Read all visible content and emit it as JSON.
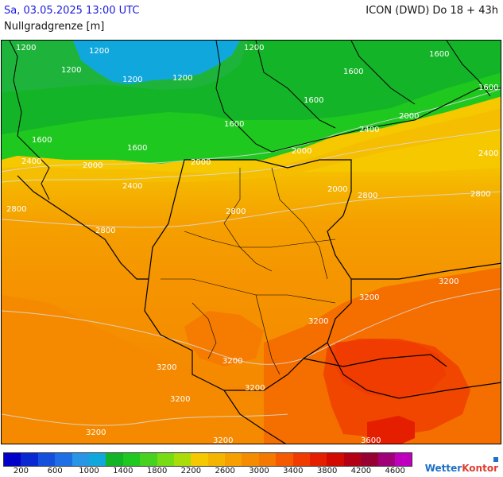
{
  "header": {
    "datetime": "Sa, 03.05.2025 13:00 UTC",
    "model": "ICON (DWD) Do 18 + 43h",
    "parameter": "Nullgradgrenze [m]"
  },
  "contour_labels": [
    {
      "text": "1200"
    },
    {
      "text": "1200"
    },
    {
      "text": "1200"
    },
    {
      "text": "1200"
    },
    {
      "text": "1200"
    },
    {
      "text": "1200"
    },
    {
      "text": "1600"
    },
    {
      "text": "1600"
    },
    {
      "text": "1600"
    },
    {
      "text": "1600"
    },
    {
      "text": "1600"
    },
    {
      "text": "1600"
    },
    {
      "text": "1600"
    },
    {
      "text": "2000"
    },
    {
      "text": "2000"
    },
    {
      "text": "2000"
    },
    {
      "text": "2000"
    },
    {
      "text": "2000"
    },
    {
      "text": "2400"
    },
    {
      "text": "2400"
    },
    {
      "text": "2400"
    },
    {
      "text": "2400"
    },
    {
      "text": "2800"
    },
    {
      "text": "2800"
    },
    {
      "text": "2800"
    },
    {
      "text": "2800"
    },
    {
      "text": "2800"
    },
    {
      "text": "3200"
    },
    {
      "text": "3200"
    },
    {
      "text": "3200"
    },
    {
      "text": "3200"
    },
    {
      "text": "3200"
    },
    {
      "text": "3200"
    },
    {
      "text": "3200"
    },
    {
      "text": "3200"
    },
    {
      "text": "3200"
    },
    {
      "text": "3600"
    }
  ],
  "legend": {
    "colors": [
      "#0000c8",
      "#0a28d2",
      "#1450dc",
      "#1e6ee6",
      "#2896e6",
      "#10a8dc",
      "#14b428",
      "#1ec81e",
      "#46d21e",
      "#78dc14",
      "#aadc0a",
      "#f5c800",
      "#f5b400",
      "#f5a000",
      "#f58c00",
      "#f57800",
      "#f55a00",
      "#f03c00",
      "#e61e00",
      "#d20a00",
      "#b40014",
      "#960032",
      "#a00078",
      "#be00be"
    ],
    "tick_labels": [
      "200",
      "600",
      "1000",
      "1400",
      "1800",
      "2200",
      "2600",
      "3000",
      "3400",
      "3800",
      "4200",
      "4600"
    ]
  },
  "branding": {
    "part1": "Wetter",
    "part2": "Kontor"
  }
}
